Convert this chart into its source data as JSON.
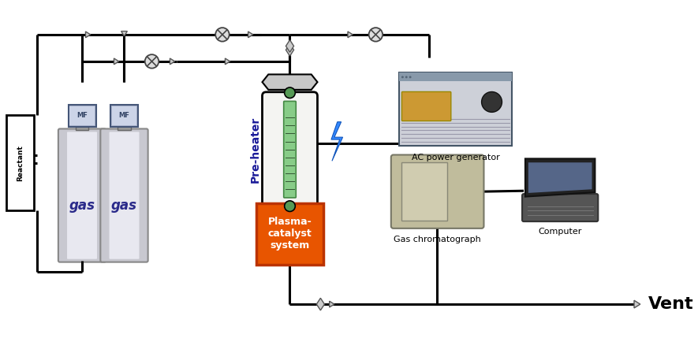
{
  "bg_color": "#ffffff",
  "lc": "#000000",
  "lw": 2.2,
  "gas_c1": "#c8c8d0",
  "gas_c2": "#e8e8f0",
  "gas_text_color": "#2a2a8a",
  "mfc_c1": "#aab4cc",
  "mfc_c2": "#ccd4e8",
  "plasma_fill": "#e85500",
  "plasma_edge": "#bb3300",
  "ac_fill": "#b8bcc8",
  "ac_fill2": "#cdd0d8",
  "gc_fill": "#c0bc9c",
  "gc_fill2": "#d0ccb0",
  "comp_dark": "#2a2a2a",
  "comp_screen": "#556688",
  "comp_body": "#444444",
  "lightning_c": "#3388ff",
  "ph_outer": "#f0f0ee",
  "ph_tube": "#88cc88",
  "ph_tube_dark": "#448844",
  "ph_cap": "#c8c8c8",
  "gas_label": "gas",
  "reactant_label": "Reactant",
  "mfc_label": "MF",
  "ac_label": "AC power generator",
  "gc_label": "Gas chromatograph",
  "computer_label": "Computer",
  "vent_label": "Vent",
  "preheater_label": "Pre-heater",
  "plasma_label": "Plasma-\ncatalyst\nsystem",
  "pipe_arrow_fc": "#cccccc",
  "pipe_arrow_ec": "#555555",
  "valve_x_fc": "#dddddd",
  "valve_x_ec": "#444444"
}
